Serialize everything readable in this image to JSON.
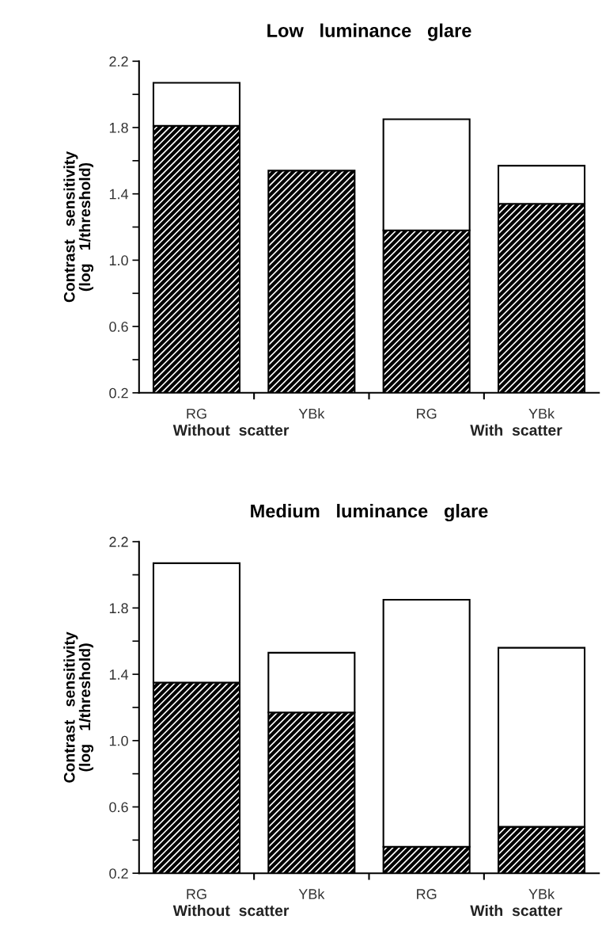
{
  "chart_data": [
    {
      "type": "bar",
      "stacked": true,
      "title": "Low   luminance   glare",
      "ylabel": "Contrast   sensitivity\n(log   1/threshold)",
      "categories": [
        "RG",
        "YBk",
        "RG",
        "YBk"
      ],
      "series": [
        {
          "color": "#000000",
          "values": [
            1.81,
            1.54,
            1.18,
            1.34
          ]
        },
        {
          "color": "#ffffff",
          "values": [
            0.26,
            null,
            0.67,
            0.23
          ]
        }
      ],
      "ylim": [
        0.2,
        2.2
      ],
      "yticks": [
        {
          "value": 0.2,
          "label": "0.2"
        },
        {
          "value": 0.4,
          "label": null
        },
        {
          "value": 0.6,
          "label": "0.6"
        },
        {
          "value": 0.8,
          "label": null
        },
        {
          "value": 1.0,
          "label": "1.0"
        },
        {
          "value": 1.2,
          "label": null
        },
        {
          "value": 1.4,
          "label": "1.4"
        },
        {
          "value": 1.6,
          "label": null
        },
        {
          "value": 1.8,
          "label": "1.8"
        },
        {
          "value": 2.0,
          "label": null
        },
        {
          "value": 2.2,
          "label": "2.2"
        }
      ],
      "annotations": [
        "Without  scatter",
        "With  scatter"
      ]
    },
    {
      "type": "bar",
      "stacked": true,
      "title": "Medium   luminance   glare",
      "ylabel": "Contrast   sensitivity\n(log   1/threshold)",
      "categories": [
        "RG",
        "YBk",
        "RG",
        "YBk"
      ],
      "series": [
        {
          "color": "#000000",
          "values": [
            1.35,
            1.17,
            0.36,
            0.48
          ]
        },
        {
          "color": "#ffffff",
          "values": [
            0.72,
            0.36,
            1.49,
            1.08
          ]
        }
      ],
      "ylim": [
        0.2,
        2.2
      ],
      "yticks": [
        {
          "value": 0.2,
          "label": "0.2"
        },
        {
          "value": 0.4,
          "label": null
        },
        {
          "value": 0.6,
          "label": "0.6"
        },
        {
          "value": 0.8,
          "label": null
        },
        {
          "value": 1.0,
          "label": "1.0"
        },
        {
          "value": 1.2,
          "label": null
        },
        {
          "value": 1.4,
          "label": "1.4"
        },
        {
          "value": 1.6,
          "label": null
        },
        {
          "value": 1.8,
          "label": "1.8"
        },
        {
          "value": 2.0,
          "label": null
        },
        {
          "value": 2.2,
          "label": "2.2"
        }
      ],
      "annotations": [
        "Without  scatter",
        "With  scatter"
      ]
    }
  ]
}
